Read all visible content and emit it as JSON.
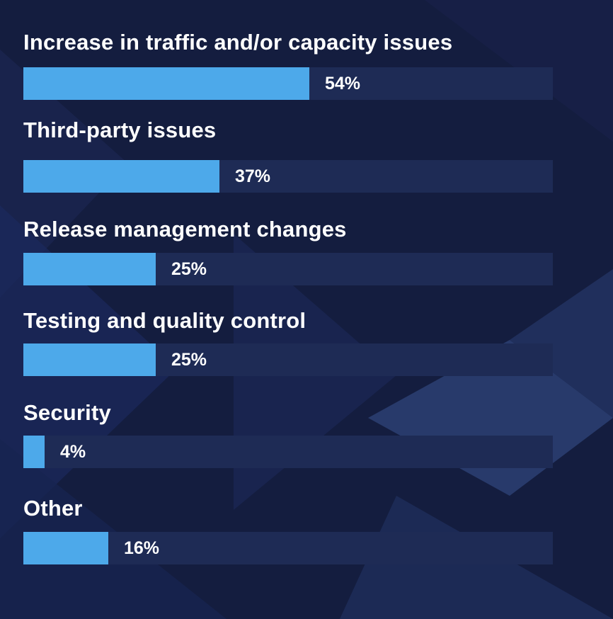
{
  "colors": {
    "background": "#141d3f",
    "track": "#1e2b55",
    "bar": "#4da9ea",
    "text": "#ffffff"
  },
  "chart_data": {
    "type": "bar",
    "orientation": "horizontal",
    "title": "",
    "xlabel": "",
    "ylabel": "",
    "xlim": [
      0,
      100
    ],
    "unit": "%",
    "grid": false,
    "legend": "none",
    "categories": [
      "Increase in traffic and/or capacity issues",
      "Third-party issues",
      "Release management changes",
      "Testing and quality control",
      "Security",
      "Other"
    ],
    "values": [
      54,
      37,
      25,
      25,
      4,
      16
    ],
    "value_labels": [
      "54%",
      "37%",
      "25%",
      "25%",
      "4%",
      "16%"
    ]
  }
}
